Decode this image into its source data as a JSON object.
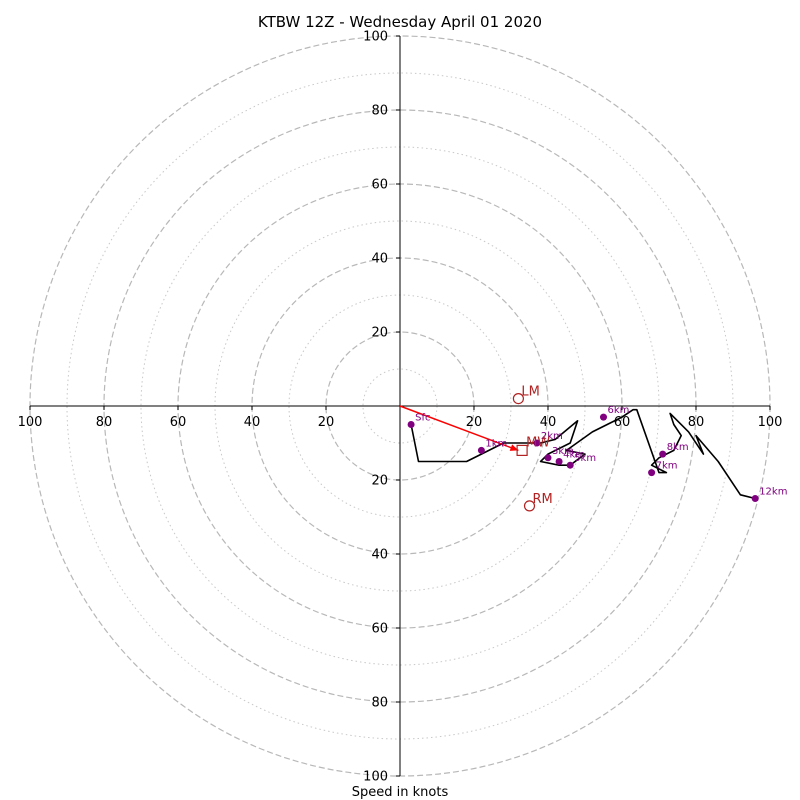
{
  "chart_data": {
    "type": "scatter",
    "title": "KTBW 12Z - Wednesday April 01 2020",
    "xlabel": "Speed in knots",
    "ylabel": "",
    "xlim": [
      -100,
      100
    ],
    "ylim": [
      -100,
      100
    ],
    "rings_major": [
      20,
      40,
      60,
      80,
      100
    ],
    "rings_minor": [
      10,
      30,
      50,
      70,
      90
    ],
    "x_ticks": [
      "100",
      "80",
      "60",
      "40",
      "20",
      "20",
      "40",
      "60",
      "80",
      "100"
    ],
    "y_ticks": [
      "100",
      "80",
      "60",
      "40",
      "20",
      "20",
      "40",
      "60",
      "80",
      "100"
    ],
    "hodograph_line": {
      "color": "#000000",
      "points": [
        [
          3,
          -5
        ],
        [
          5,
          -15
        ],
        [
          18,
          -15
        ],
        [
          22,
          -13
        ],
        [
          28,
          -10
        ],
        [
          38,
          -10
        ],
        [
          42,
          -9
        ],
        [
          48,
          -4
        ],
        [
          46,
          -10
        ],
        [
          40,
          -13
        ],
        [
          38,
          -15
        ],
        [
          43,
          -16
        ],
        [
          46,
          -16
        ],
        [
          50,
          -13
        ],
        [
          45,
          -12
        ],
        [
          52,
          -7
        ],
        [
          56,
          -5
        ],
        [
          60,
          -3
        ],
        [
          63,
          -1
        ],
        [
          64,
          -1
        ],
        [
          70,
          -18
        ],
        [
          72,
          -18
        ],
        [
          68,
          -16
        ],
        [
          70,
          -14
        ],
        [
          74,
          -12
        ],
        [
          76,
          -8
        ],
        [
          74,
          -5
        ],
        [
          73,
          -2
        ],
        [
          78,
          -7
        ],
        [
          82,
          -13
        ],
        [
          80,
          -8
        ],
        [
          86,
          -15
        ],
        [
          92,
          -24
        ],
        [
          96,
          -25
        ]
      ]
    },
    "height_markers": {
      "color": "#800080",
      "points": [
        {
          "label": "Sfc",
          "x": 3,
          "y": -5
        },
        {
          "label": "1km",
          "x": 22,
          "y": -12
        },
        {
          "label": "2km",
          "x": 37,
          "y": -10
        },
        {
          "label": "3km",
          "x": 40,
          "y": -14
        },
        {
          "label": "4km",
          "x": 43,
          "y": -15
        },
        {
          "label": "5km",
          "x": 46,
          "y": -16
        },
        {
          "label": "6km",
          "x": 55,
          "y": -3
        },
        {
          "label": "7km",
          "x": 68,
          "y": -18
        },
        {
          "label": "8km",
          "x": 71,
          "y": -13
        },
        {
          "label": "12km",
          "x": 96,
          "y": -25
        }
      ]
    },
    "storm_motion": {
      "color": "#b22222",
      "mean": {
        "label": "MW",
        "x": 33,
        "y": -12
      },
      "left": {
        "label": "LM",
        "x": 32,
        "y": 2
      },
      "right": {
        "label": "RM",
        "x": 35,
        "y": -27
      }
    },
    "shear_vector": {
      "color": "#ff0000",
      "from": [
        0,
        0
      ],
      "to": [
        32,
        -12
      ]
    }
  }
}
